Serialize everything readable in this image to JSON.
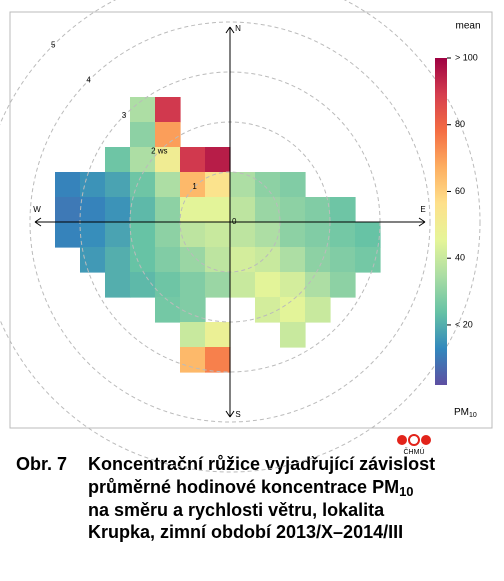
{
  "chart_data": {
    "type": "polar-heatmap",
    "directions": [
      "N",
      "E",
      "S",
      "W"
    ],
    "rlim": [
      0,
      5
    ],
    "rticks": [
      1,
      {
        "value": 2,
        "label": "2 ws"
      },
      3,
      4,
      5
    ],
    "center_label": "0",
    "x": [
      -3.25,
      -2.75,
      -2.25,
      -1.75,
      -1.25,
      -0.75,
      -0.25,
      0.25,
      0.75,
      1.25,
      1.75,
      2.25,
      2.75
    ],
    "y": [
      2.25,
      1.75,
      1.25,
      0.75,
      0.25,
      -0.25,
      -0.75,
      -1.25,
      -1.75,
      -2.25,
      -2.75
    ],
    "z": [
      [
        null,
        null,
        null,
        35,
        90,
        null,
        null,
        null,
        null,
        null,
        null,
        null,
        null
      ],
      [
        null,
        null,
        null,
        30,
        70,
        null,
        null,
        null,
        null,
        null,
        null,
        null,
        null
      ],
      [
        null,
        null,
        25,
        35,
        50,
        90,
        95,
        null,
        null,
        null,
        null,
        null,
        null
      ],
      [
        12,
        15,
        18,
        25,
        35,
        65,
        55,
        35,
        30,
        28,
        null,
        null,
        null
      ],
      [
        10,
        12,
        15,
        22,
        30,
        45,
        45,
        38,
        32,
        30,
        28,
        25,
        null
      ],
      [
        12,
        14,
        18,
        24,
        30,
        38,
        40,
        38,
        35,
        30,
        28,
        26,
        24
      ],
      [
        null,
        16,
        20,
        24,
        28,
        32,
        38,
        42,
        40,
        35,
        30,
        28,
        26
      ],
      [
        null,
        null,
        20,
        22,
        25,
        28,
        32,
        40,
        45,
        42,
        35,
        30,
        null
      ],
      [
        null,
        null,
        null,
        null,
        26,
        28,
        null,
        null,
        42,
        45,
        40,
        null,
        null
      ],
      [
        null,
        null,
        null,
        null,
        null,
        40,
        48,
        null,
        null,
        40,
        null,
        null,
        null
      ],
      [
        null,
        null,
        null,
        null,
        null,
        65,
        75,
        null,
        null,
        null,
        null,
        null,
        null
      ]
    ],
    "colors": [
      "#5e4fa2",
      "#3288bd",
      "#66c2a5",
      "#abdda4",
      "#e6f598",
      "#fee08b",
      "#fdae61",
      "#f46d43",
      "#d53e4f",
      "#9e0142"
    ],
    "legend_title": "mean",
    "clim": [
      2,
      100
    ],
    "cticks": [
      {
        "value": 100,
        "label": "> 100"
      },
      80,
      60,
      40,
      {
        "value": 20,
        "label": "< 20"
      }
    ],
    "unit": [
      "PM",
      "10"
    ]
  },
  "logo": "ČHMÚ",
  "caption": {
    "label": "Obr. 7",
    "lines": [
      [
        "Koncentrační růžice vyjadřující závislost"
      ],
      [
        "průměrné hodinové koncentrace PM",
        "10"
      ],
      [
        "na směru a rychlosti větru, lokalita"
      ],
      [
        "Krupka, zimní období 2013/X–2014/III"
      ]
    ]
  }
}
